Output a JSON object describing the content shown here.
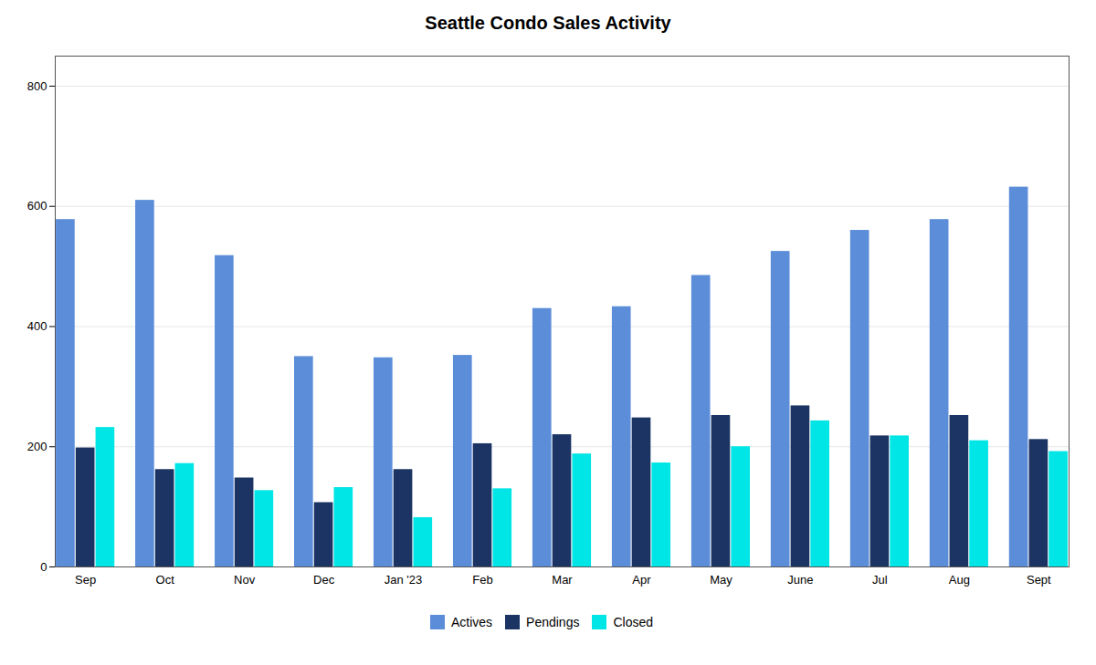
{
  "chart_data": {
    "type": "bar",
    "title": "Seattle Condo Sales Activity",
    "categories": [
      "Sep",
      "Oct",
      "Nov",
      "Dec",
      "Jan '23",
      "Feb",
      "Mar",
      "Apr",
      "May",
      "June",
      "Jul",
      "Aug",
      "Sept"
    ],
    "series": [
      {
        "name": "Actives",
        "color": "#5B8DD9",
        "values": [
          578,
          610,
          518,
          350,
          348,
          352,
          430,
          433,
          485,
          525,
          560,
          578,
          632
        ]
      },
      {
        "name": "Pendings",
        "color": "#1B3464",
        "values": [
          198,
          162,
          148,
          107,
          162,
          205,
          220,
          248,
          252,
          268,
          218,
          252,
          212
        ]
      },
      {
        "name": "Closed",
        "color": "#00E5E5",
        "values": [
          232,
          172,
          127,
          132,
          82,
          130,
          188,
          173,
          200,
          243,
          218,
          210,
          192
        ]
      }
    ],
    "ylim": [
      0,
      850
    ],
    "yticks": [
      0,
      200,
      400,
      600,
      800
    ],
    "grid": true,
    "legend": "bottom"
  }
}
